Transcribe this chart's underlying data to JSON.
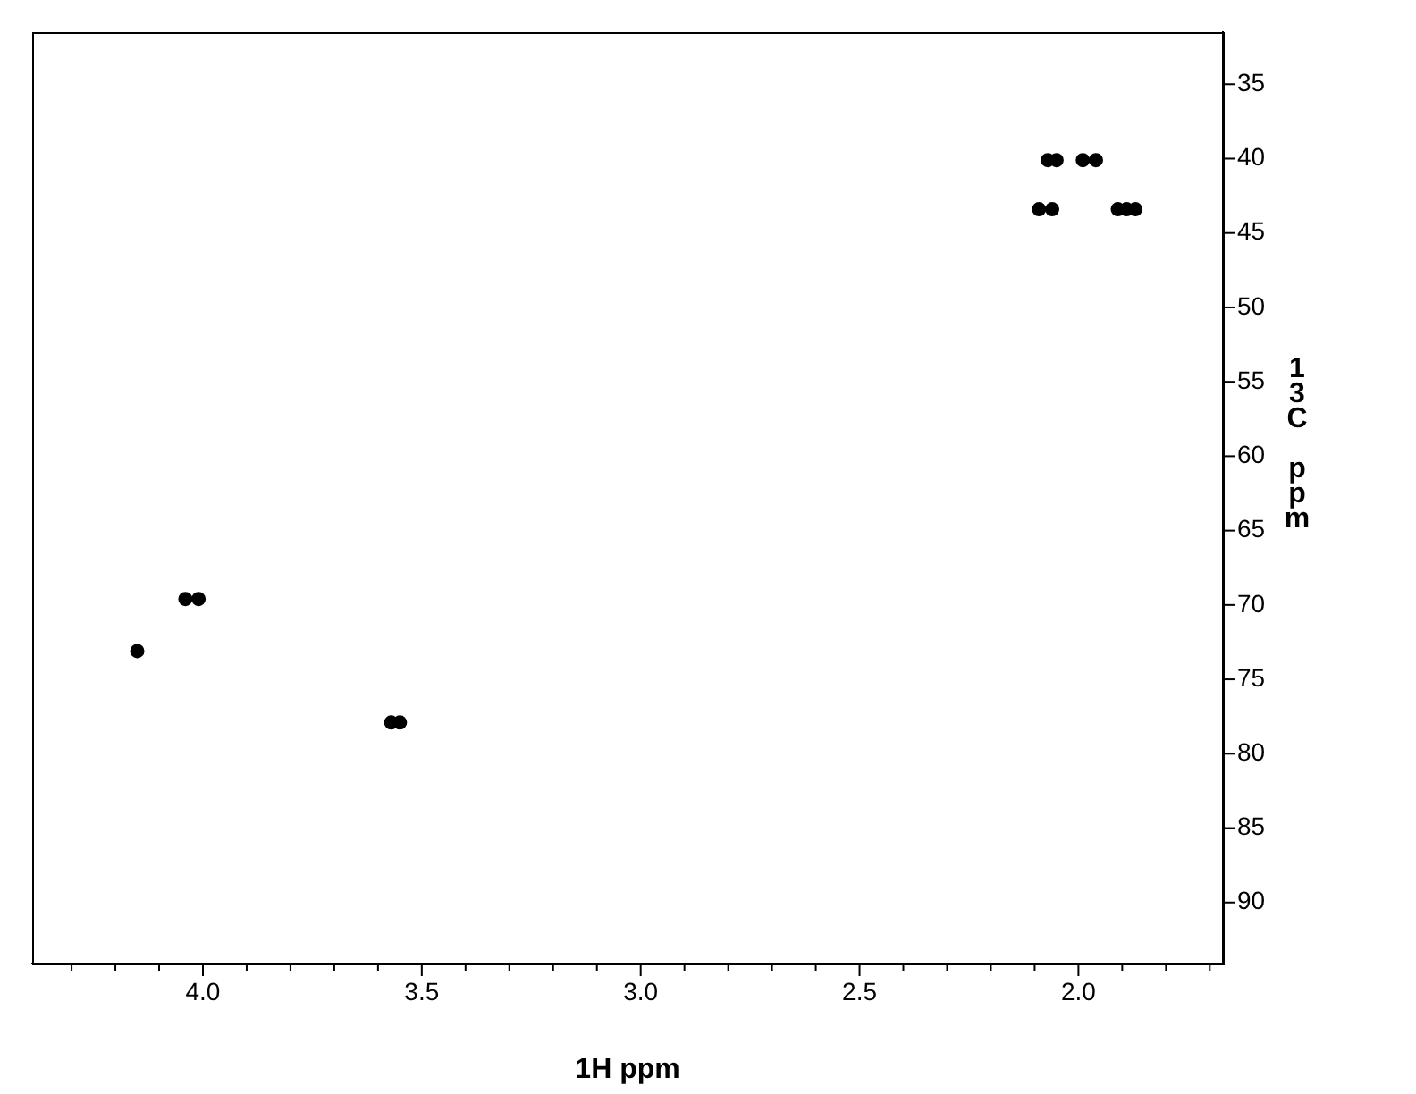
{
  "chart_data": {
    "type": "scatter",
    "xlabel": "1H ppm",
    "ylabel": "13C ppm",
    "x": [
      4.15,
      4.04,
      4.01,
      3.57,
      3.55,
      2.07,
      2.05,
      1.99,
      1.96,
      2.09,
      2.06,
      1.91,
      1.89,
      1.87
    ],
    "series": [
      {
        "color": "#000000",
        "values": [
          73.1,
          69.6,
          69.6,
          77.9,
          77.9,
          40.1,
          40.1,
          40.1,
          40.1,
          43.4,
          43.4,
          43.4,
          43.4,
          43.4
        ]
      }
    ],
    "xlim": [
      4.39,
      1.67
    ],
    "xticks": [
      {
        "value": 4.3,
        "label": null
      },
      {
        "value": 4.2,
        "label": null
      },
      {
        "value": 4.1,
        "label": null
      },
      {
        "value": 4.0,
        "label": "4.0"
      },
      {
        "value": 3.9,
        "label": null
      },
      {
        "value": 3.8,
        "label": null
      },
      {
        "value": 3.7,
        "label": null
      },
      {
        "value": 3.6,
        "label": null
      },
      {
        "value": 3.5,
        "label": "3.5"
      },
      {
        "value": 3.4,
        "label": null
      },
      {
        "value": 3.3,
        "label": null
      },
      {
        "value": 3.2,
        "label": null
      },
      {
        "value": 3.1,
        "label": null
      },
      {
        "value": 3.0,
        "label": "3.0"
      },
      {
        "value": 2.9,
        "label": null
      },
      {
        "value": 2.8,
        "label": null
      },
      {
        "value": 2.7,
        "label": null
      },
      {
        "value": 2.6,
        "label": null
      },
      {
        "value": 2.5,
        "label": "2.5"
      },
      {
        "value": 2.4,
        "label": null
      },
      {
        "value": 2.3,
        "label": null
      },
      {
        "value": 2.2,
        "label": null
      },
      {
        "value": 2.1,
        "label": null
      },
      {
        "value": 2.0,
        "label": "2.0"
      },
      {
        "value": 1.9,
        "label": null
      },
      {
        "value": 1.8,
        "label": null
      },
      {
        "value": 1.7,
        "label": null
      }
    ],
    "ylim": [
      94.1,
      31.5
    ],
    "yticks": [
      35,
      40,
      45,
      50,
      55,
      60,
      65,
      70,
      75,
      80,
      85,
      90
    ],
    "marker": "circle",
    "grid": false,
    "legend": false
  }
}
